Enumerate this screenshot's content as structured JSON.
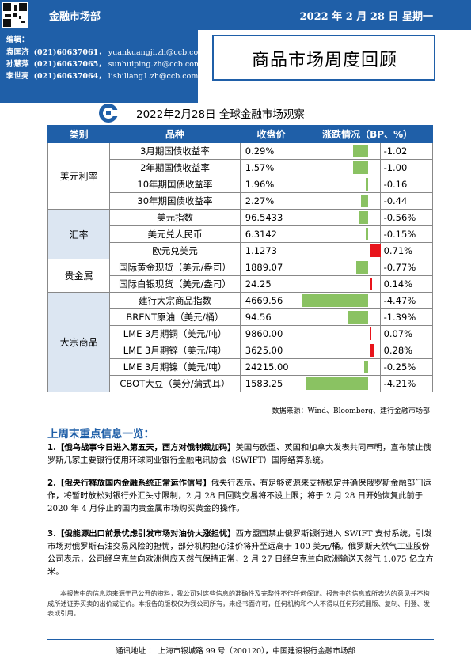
{
  "header": {
    "department": "金融市场部",
    "date": "2022 年 2 月 28 日  星期一"
  },
  "editors": {
    "label": "编辑：",
    "people": [
      {
        "name": "袁匡济",
        "phone": "(021)60637061",
        "email": "yuankuangji.zh@ccb.com"
      },
      {
        "name": "孙慧萍",
        "phone": "(021)60637065",
        "email": "sunhuiping.zh@ccb.com"
      },
      {
        "name": "李世亮",
        "phone": "(021)60637064",
        "email": "lishiliang1.zh@ccb.com"
      }
    ]
  },
  "report_title": "商品市场周度回顾",
  "table_title": "2022年2月28日  全球金融市场观察",
  "colors": {
    "brand": "#1f5fa8",
    "up": "#e8141b",
    "down": "#8ac262"
  },
  "chart_data": {
    "type": "table",
    "columns": [
      "类别",
      "品种",
      "收盘价",
      "涨跌情况（BP、%）"
    ],
    "groups": [
      {
        "category": "美元利率",
        "rows": [
          {
            "name": "3月期国债收益率",
            "close": "0.29%",
            "change": -1.02,
            "change_label": "-1.02"
          },
          {
            "name": "2年期国债收益率",
            "close": "1.57%",
            "change": -1.0,
            "change_label": "-1.00"
          },
          {
            "name": "10年期国债收益率",
            "close": "1.96%",
            "change": -0.16,
            "change_label": "-0.16"
          },
          {
            "name": "30年期国债收益率",
            "close": "2.27%",
            "change": -0.44,
            "change_label": "-0.44"
          }
        ]
      },
      {
        "category": "汇率",
        "rows": [
          {
            "name": "美元指数",
            "close": "96.5433",
            "change": -0.56,
            "change_label": "-0.56%"
          },
          {
            "name": "美元兑人民币",
            "close": "6.3142",
            "change": -0.15,
            "change_label": "-0.15%"
          },
          {
            "name": "欧元兑美元",
            "close": "1.1273",
            "change": 0.71,
            "change_label": "0.71%"
          }
        ]
      },
      {
        "category": "贵金属",
        "rows": [
          {
            "name": "国际黄金现货（美元/盎司）",
            "close": "1889.07",
            "change": -0.77,
            "change_label": "-0.77%"
          },
          {
            "name": "国际白银现货（美元/盎司）",
            "close": "24.25",
            "change": 0.14,
            "change_label": "0.14%"
          }
        ]
      },
      {
        "category": "大宗商品",
        "rows": [
          {
            "name": "建行大宗商品指数",
            "close": "4669.56",
            "change": -4.47,
            "change_label": "-4.47%"
          },
          {
            "name": "BRENT原油（美元/桶）",
            "close": "94.56",
            "change": -1.39,
            "change_label": "-1.39%"
          },
          {
            "name": "LME 3月期铜（美元/吨）",
            "close": "9860.00",
            "change": 0.07,
            "change_label": "0.07%"
          },
          {
            "name": "LME 3月期锌（美元/吨）",
            "close": "3625.00",
            "change": 0.28,
            "change_label": "0.28%"
          },
          {
            "name": "LME 3月期镍（美元/吨）",
            "close": "24215.00",
            "change": -0.25,
            "change_label": "-0.25%"
          },
          {
            "name": "CBOT大豆（美分/蒲式耳）",
            "close": "1583.25",
            "change": -4.21,
            "change_label": "-4.21%"
          }
        ]
      }
    ]
  },
  "source_note": "数据来源：Wind、Bloomberg、建行金融市场部",
  "highlights_title": "上周末重点信息一览：",
  "highlights": [
    {
      "num": "1.",
      "headline": "【俄乌战事今日进入第五天，西方对俄制裁加码】",
      "body": "美国与欧盟、英国和加拿大发表共同声明，宣布禁止俄罗斯几家主要银行使用环球同业银行金融电讯协会（SWIFT）国际结算系统。"
    },
    {
      "num": "2.",
      "headline": "【俄央行释放国内金融系统正常运作信号】",
      "body": "俄央行表示，有足够资源来支持稳定并确保俄罗斯金融部门运作，将暂时放松对银行外汇头寸限制，2 月 28 日回购交易将不设上限；将于 2 月 28 日开始恢复此前于 2020 年 4 月停止的国内贵金属市场购买黄金的操作。"
    },
    {
      "num": "3.",
      "headline": "【俄能源出口前景忧虑引发市场对油价大涨担忧】",
      "body": "西方盟国禁止俄罗斯银行进入 SWIFT 支付系统，引发市场对俄罗斯石油交易风险的担忧，部分机构担心油价将升至远高于 100 美元/桶。俄罗斯天然气工业股份公司表示，公司经乌克兰向欧洲供应天然气保持正常，2 月 27 日经乌克兰向欧洲输送天然气 1.075 亿立方米。"
    }
  ],
  "disclaimer": "本报告中的信息均来源于已公开的资料，我公司对这些信息的准确性及完整性不作任何保证。报告中的信息或所表达的意见并不构成所述证券买卖的出价或征价。本报告的版权仅为我公司所有，未经书面许可，任何机构和个人不得以任何形式翻版、复制、刊登、发表或引用。",
  "footer": "通讯地址 ： 上海市银城路 99 号（200120），中国建设银行金融市场部"
}
